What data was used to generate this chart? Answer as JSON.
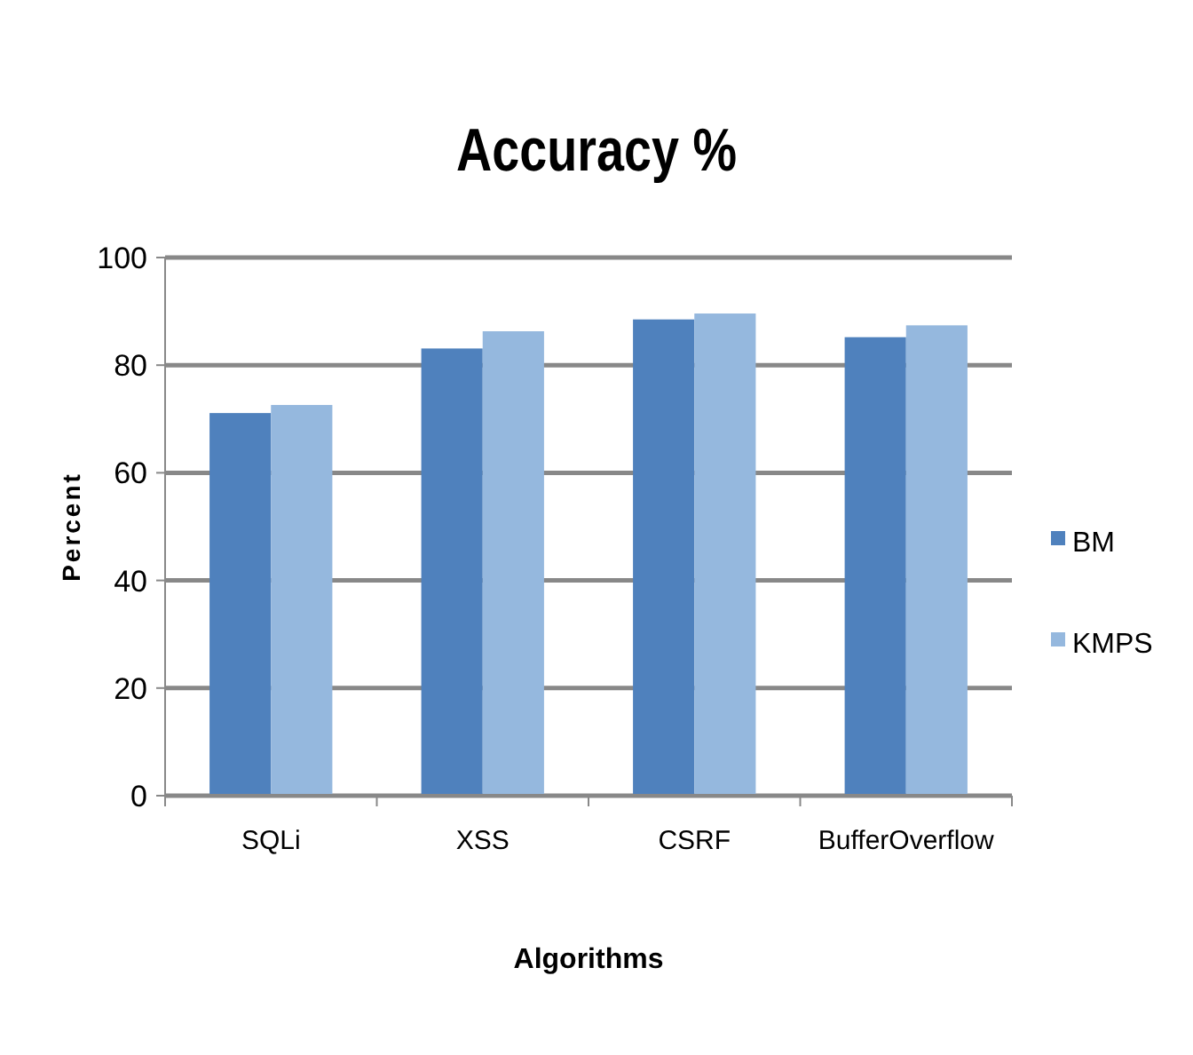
{
  "chart_data": {
    "type": "bar",
    "title": "Accuracy %",
    "xlabel": "Algorithms",
    "ylabel": "Percent",
    "categories": [
      "SQLi",
      "XSS",
      "CSRF",
      "BufferOverflow"
    ],
    "series": [
      {
        "name": "BM",
        "color": "#4f81bd",
        "values": [
          71.1,
          83.1,
          88.5,
          85.2
        ]
      },
      {
        "name": "KMPS",
        "color": "#95b8de",
        "values": [
          72.6,
          86.3,
          89.6,
          87.4
        ]
      }
    ],
    "ylim": [
      0,
      100
    ],
    "yticks": [
      0,
      20,
      40,
      60,
      80,
      100
    ],
    "grid": "y",
    "legend": "right"
  }
}
